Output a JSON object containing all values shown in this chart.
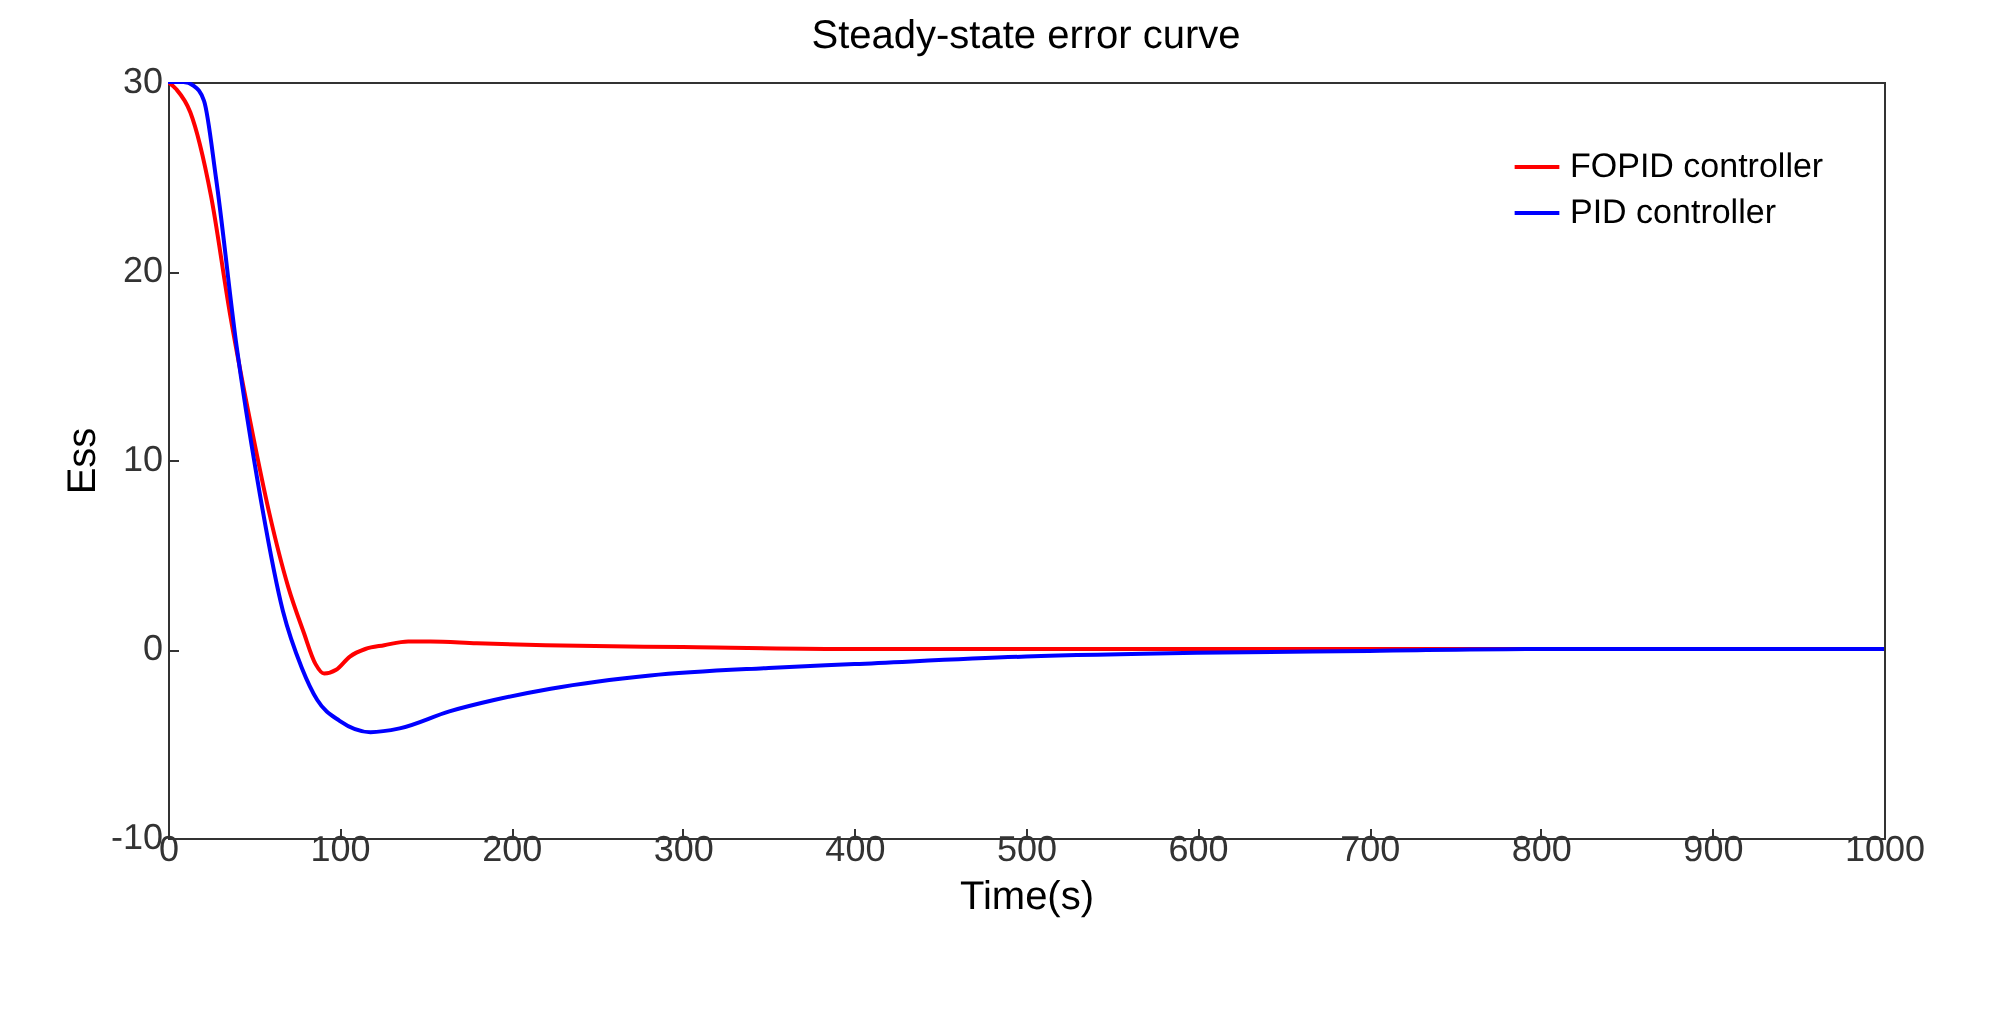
{
  "chart_data": {
    "type": "line",
    "title": "Steady-state error curve",
    "xlabel": "Time(s)",
    "ylabel": "Ess",
    "xlim": [
      0,
      1000
    ],
    "ylim": [
      -10,
      30
    ],
    "xticks": [
      0,
      100,
      200,
      300,
      400,
      500,
      600,
      700,
      800,
      900,
      1000
    ],
    "yticks": [
      -10,
      0,
      10,
      20,
      30
    ],
    "grid": false,
    "legend": "top right",
    "series": [
      {
        "name": "FOPID controller",
        "color": "#ff0000",
        "x": [
          0,
          5,
          13,
          25,
          36,
          48,
          59,
          70,
          79,
          86,
          91,
          98,
          106,
          115,
          126,
          140,
          153,
          180,
          220,
          300,
          400,
          600,
          800,
          1000
        ],
        "values": [
          30,
          29.6,
          28.4,
          24,
          17.8,
          12,
          7.2,
          3.3,
          0.9,
          -0.8,
          -1.3,
          -1.1,
          -0.4,
          0,
          0.2,
          0.4,
          0.4,
          0.3,
          0.2,
          0.1,
          0,
          0,
          0,
          0
        ]
      },
      {
        "name": "PID controller",
        "color": "#0000ff",
        "x": [
          0,
          9,
          15,
          21,
          28,
          40,
          52,
          67,
          78,
          87,
          100,
          118,
          135,
          164,
          190,
          223,
          281,
          350,
          400,
          500,
          600,
          700,
          800,
          1000
        ],
        "values": [
          30,
          30,
          29.8,
          29,
          24.9,
          16,
          9,
          2,
          -1,
          -2.7,
          -3.8,
          -4.4,
          -4.2,
          -3.3,
          -2.7,
          -2.1,
          -1.4,
          -1,
          -0.8,
          -0.4,
          -0.2,
          -0.1,
          0,
          0
        ]
      }
    ]
  }
}
